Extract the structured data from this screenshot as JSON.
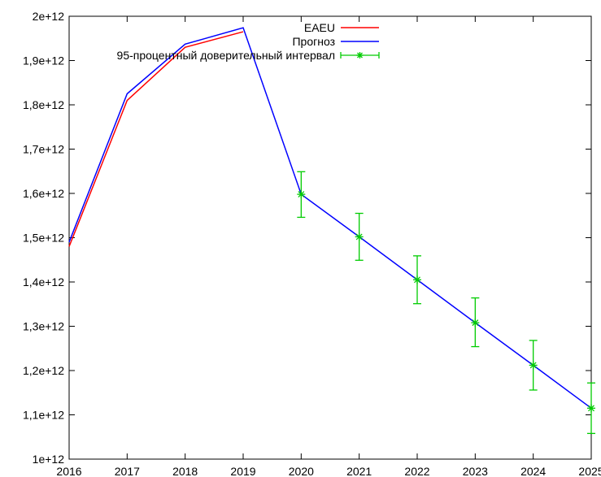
{
  "chart_data": {
    "type": "line",
    "x": [
      2016,
      2017,
      2018,
      2019,
      2020,
      2021,
      2022,
      2023,
      2024,
      2025
    ],
    "x_tick_labels": [
      "2016",
      "2017",
      "2018",
      "2019",
      "2020",
      "2021",
      "2022",
      "2023",
      "2024",
      "2025"
    ],
    "y_tick_values": [
      1000000000000.0,
      1100000000000.0,
      1200000000000.0,
      1300000000000.0,
      1400000000000.0,
      1500000000000.0,
      1600000000000.0,
      1700000000000.0,
      1800000000000.0,
      1900000000000.0,
      2000000000000.0
    ],
    "y_tick_labels": [
      "1e+12",
      "1,1e+12",
      "1,2e+12",
      "1,3e+12",
      "1,4e+12",
      "1,5e+12",
      "1,6e+12",
      "1,7e+12",
      "1,8e+12",
      "1,9e+12",
      "2e+12"
    ],
    "xlim": [
      2016,
      2025
    ],
    "ylim": [
      1000000000000.0,
      2000000000000.0
    ],
    "grid": false,
    "legend_position": "top-center",
    "series": [
      {
        "name": "EAEU",
        "color": "#ff0000",
        "x": [
          2016,
          2017,
          2018,
          2019
        ],
        "y": [
          1480000000000.0,
          1810000000000.0,
          1930000000000.0,
          1965000000000.0
        ]
      },
      {
        "name": "Прогноз",
        "color": "#0000ff",
        "x": [
          2016,
          2017,
          2018,
          2019,
          2020,
          2021,
          2022,
          2023,
          2024,
          2025
        ],
        "y": [
          1490000000000.0,
          1825000000000.0,
          1937000000000.0,
          1974000000000.0,
          1598000000000.0,
          1502000000000.0,
          1405000000000.0,
          1308000000000.0,
          1212000000000.0,
          1115000000000.0
        ]
      },
      {
        "name": "95-процентный доверительный интервал",
        "type": "errorbar",
        "color": "#00cc00",
        "x": [
          2020,
          2021,
          2022,
          2023,
          2024,
          2025
        ],
        "y": [
          1598000000000.0,
          1502000000000.0,
          1405000000000.0,
          1308000000000.0,
          1212000000000.0,
          1115000000000.0
        ],
        "lower": [
          1546000000000.0,
          1449000000000.0,
          1351000000000.0,
          1254000000000.0,
          1156000000000.0,
          1058000000000.0
        ],
        "upper": [
          1649000000000.0,
          1555000000000.0,
          1459000000000.0,
          1364000000000.0,
          1268000000000.0,
          1172000000000.0
        ]
      }
    ]
  }
}
